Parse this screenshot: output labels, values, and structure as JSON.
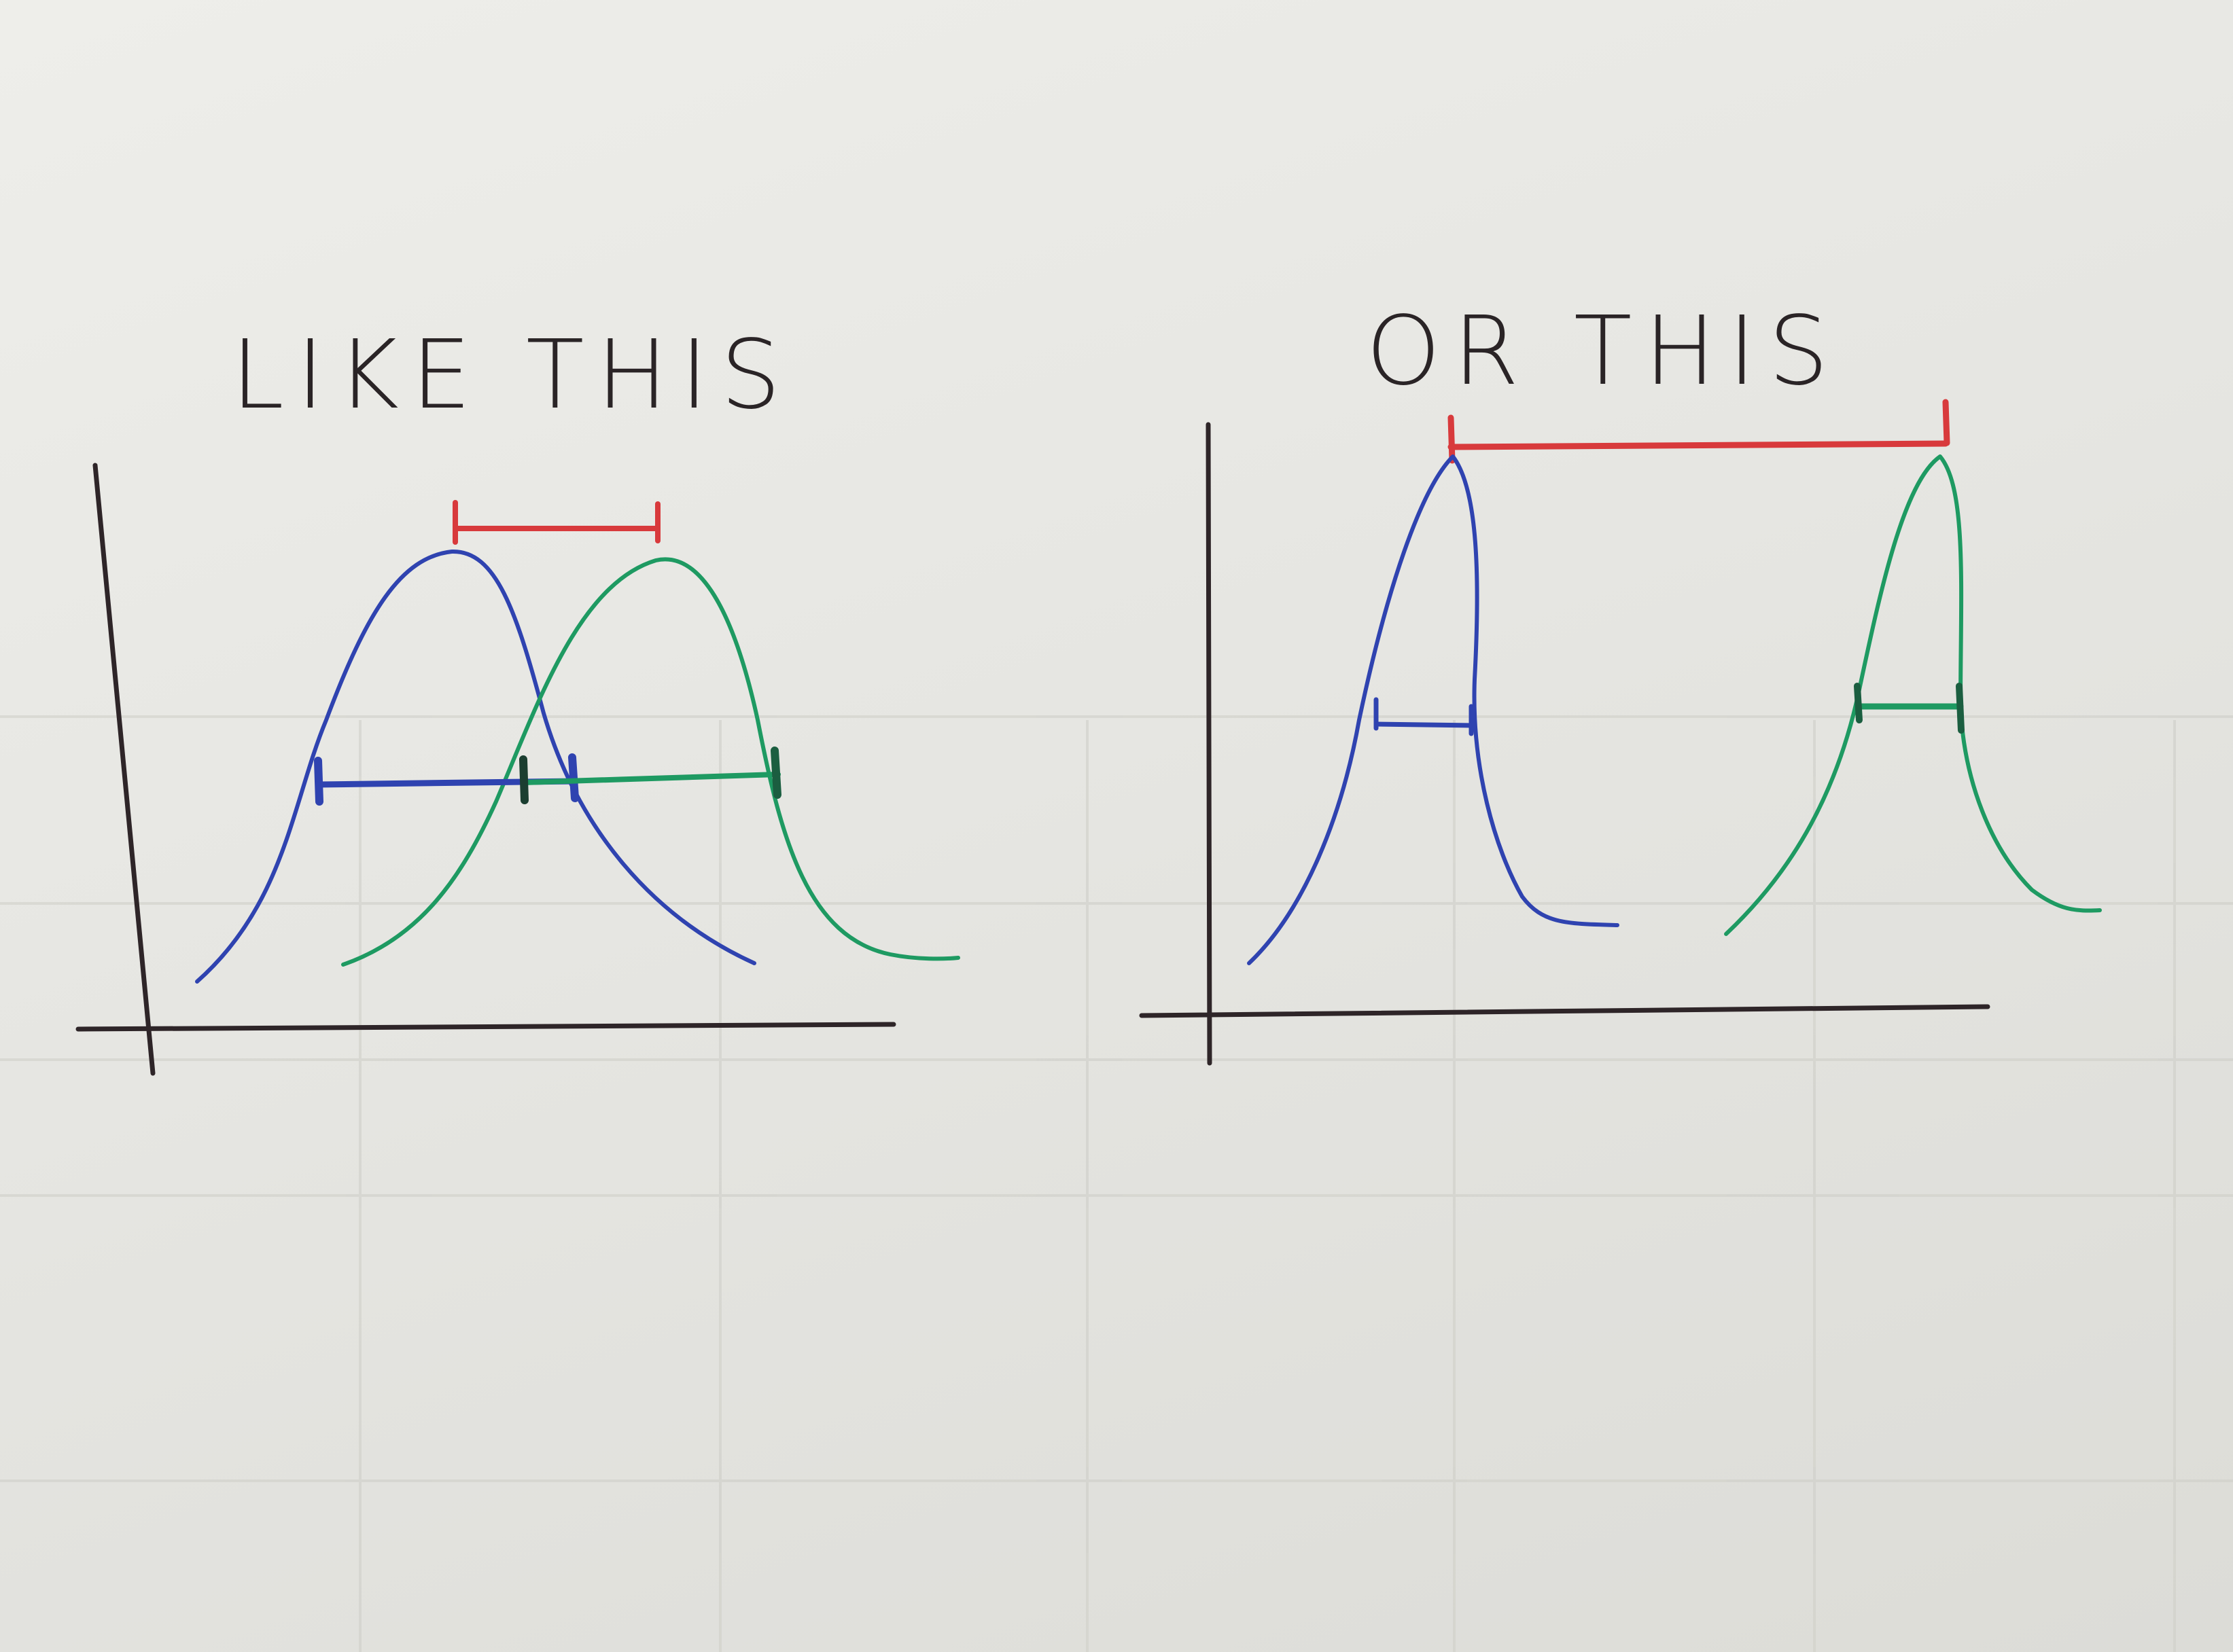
{
  "panels": [
    {
      "id": "left",
      "label": "LIKE THIS"
    },
    {
      "id": "right",
      "label": "OR THIS"
    }
  ],
  "colors": {
    "ink": "#2e2528",
    "blue": "#2f43b0",
    "green": "#1e9a62",
    "red": "#d83a3c",
    "grid_ghost": "#c8c8c2"
  }
}
